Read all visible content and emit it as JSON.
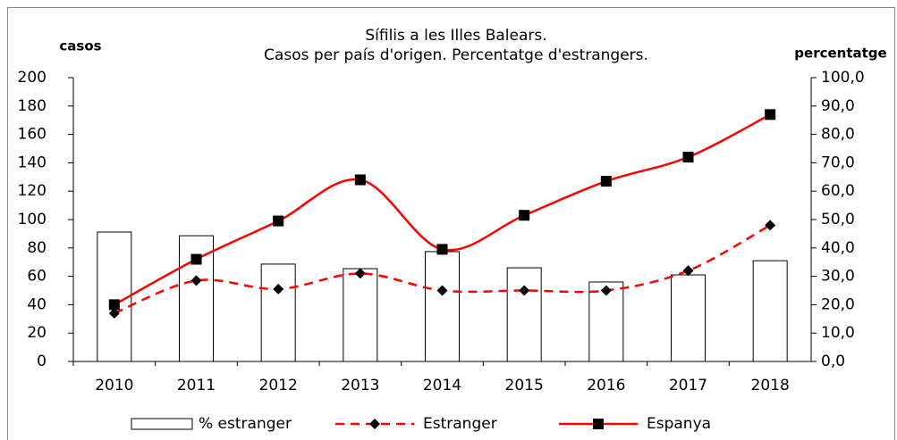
{
  "chart_data": {
    "type": "combo",
    "title": [
      "Sífilis a les Illes Balears.",
      "Casos per país d'origen. Percentatge d'estrangers."
    ],
    "y_label": "casos",
    "y2_label": "percentatge",
    "categories": [
      "2010",
      "2011",
      "2012",
      "2013",
      "2014",
      "2015",
      "2016",
      "2017",
      "2018"
    ],
    "series": [
      {
        "name": "% estranger",
        "type": "bar",
        "axis": "y2",
        "color": "#ffffff",
        "values": [
          45.6,
          44.3,
          34.3,
          32.7,
          38.7,
          33.0,
          28.0,
          30.5,
          35.5
        ]
      },
      {
        "name": "Estranger",
        "type": "line",
        "color": "#ff0000",
        "marker": "diamond",
        "dashed": true,
        "values": [
          34,
          57,
          51,
          62,
          50,
          50,
          50,
          64,
          96
        ]
      },
      {
        "name": "Espanya",
        "type": "line",
        "color": "#ff0000",
        "marker": "square",
        "dashed": false,
        "values": [
          40,
          72,
          99,
          128,
          79,
          103,
          127,
          144,
          174
        ]
      }
    ],
    "ylim": [
      0,
      200
    ],
    "yticks": [
      0,
      20,
      40,
      60,
      80,
      100,
      120,
      140,
      160,
      180,
      200
    ],
    "y2lim": [
      0,
      100
    ],
    "y2ticks": [
      {
        "value": 0,
        "label": "0,0"
      },
      {
        "value": 10,
        "label": "10,0"
      },
      {
        "value": 20,
        "label": "20,0"
      },
      {
        "value": 30,
        "label": "30,0"
      },
      {
        "value": 40,
        "label": "40,0"
      },
      {
        "value": 50,
        "label": "50,0"
      },
      {
        "value": 60,
        "label": "60,0"
      },
      {
        "value": 70,
        "label": "70,0"
      },
      {
        "value": 80,
        "label": "80,0"
      },
      {
        "value": 90,
        "label": "90,0"
      },
      {
        "value": 100,
        "label": "100,0"
      }
    ],
    "legend": "bottom"
  }
}
